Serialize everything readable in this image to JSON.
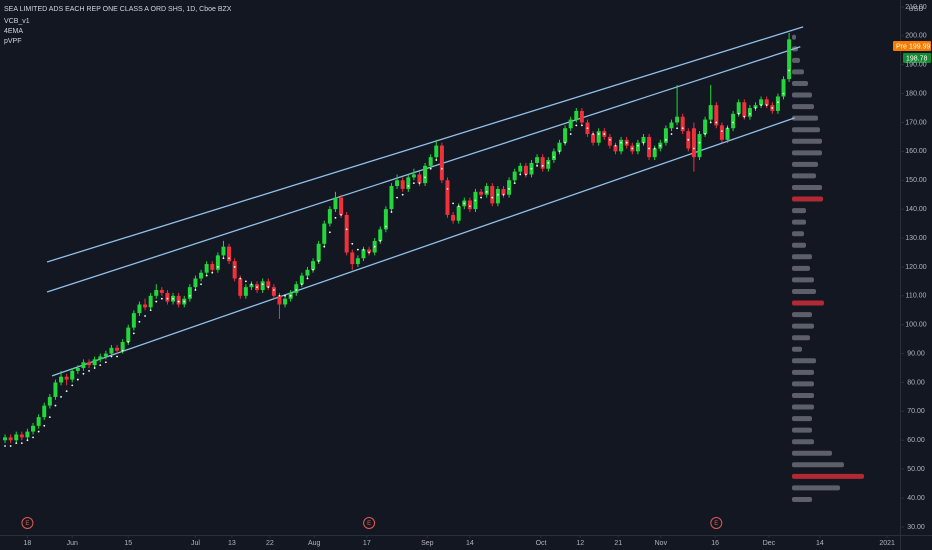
{
  "chart_data": {
    "type": "candlestick",
    "title": "SEA LIMITED ADS EACH REP ONE CLASS A ORD SHS, 1D, Cboe BZX",
    "indicators": [
      "VCB_v1",
      "4EMA",
      "pVPF"
    ],
    "currency": "USD",
    "up_color": "#22d63b",
    "down_color": "#f0313b",
    "candles": [
      [
        60,
        62,
        59,
        61
      ],
      [
        61,
        62,
        59,
        60
      ],
      [
        60,
        63,
        59,
        62
      ],
      [
        62,
        63,
        60,
        61
      ],
      [
        61,
        64,
        60,
        63
      ],
      [
        63,
        66,
        62,
        65
      ],
      [
        65,
        69,
        64,
        68
      ],
      [
        68,
        73,
        67,
        72
      ],
      [
        72,
        76,
        71,
        75
      ],
      [
        75,
        81,
        74,
        80
      ],
      [
        80,
        84,
        79,
        82
      ],
      [
        82,
        83,
        79,
        81
      ],
      [
        81,
        85,
        80,
        84
      ],
      [
        84,
        86,
        83,
        85
      ],
      [
        85,
        88,
        84,
        87
      ],
      [
        87,
        88,
        85,
        86
      ],
      [
        86,
        89,
        85,
        88
      ],
      [
        88,
        90,
        87,
        89
      ],
      [
        89,
        91,
        88,
        90
      ],
      [
        90,
        93,
        89,
        92
      ],
      [
        92,
        93,
        90,
        91
      ],
      [
        91,
        95,
        90,
        94
      ],
      [
        94,
        100,
        93,
        99
      ],
      [
        99,
        105,
        98,
        104
      ],
      [
        104,
        108,
        103,
        107
      ],
      [
        107,
        109,
        105,
        106
      ],
      [
        106,
        111,
        105,
        110
      ],
      [
        110,
        114,
        109,
        112
      ],
      [
        112,
        113,
        110,
        111
      ],
      [
        111,
        112,
        107,
        108
      ],
      [
        108,
        111,
        107,
        110
      ],
      [
        110,
        111,
        106,
        107
      ],
      [
        107,
        110,
        106,
        109
      ],
      [
        109,
        114,
        108,
        113
      ],
      [
        113,
        117,
        112,
        116
      ],
      [
        116,
        119,
        115,
        118
      ],
      [
        118,
        122,
        117,
        121
      ],
      [
        121,
        122,
        118,
        119
      ],
      [
        119,
        125,
        118,
        124
      ],
      [
        124,
        129,
        123,
        127
      ],
      [
        127,
        128,
        121,
        122
      ],
      [
        122,
        123,
        115,
        116
      ],
      [
        116,
        117,
        109,
        110
      ],
      [
        110,
        114,
        109,
        113
      ],
      [
        113,
        115,
        112,
        114
      ],
      [
        114,
        115,
        111,
        112
      ],
      [
        112,
        116,
        111,
        115
      ],
      [
        115,
        116,
        112,
        113
      ],
      [
        113,
        114,
        109,
        110
      ],
      [
        110,
        111,
        102,
        107
      ],
      [
        107,
        110,
        106,
        109
      ],
      [
        109,
        112,
        108,
        111
      ],
      [
        111,
        115,
        110,
        114
      ],
      [
        114,
        118,
        113,
        117
      ],
      [
        117,
        120,
        116,
        119
      ],
      [
        119,
        123,
        118,
        122
      ],
      [
        122,
        129,
        121,
        128
      ],
      [
        128,
        136,
        127,
        135
      ],
      [
        135,
        141,
        134,
        140
      ],
      [
        140,
        146,
        139,
        144
      ],
      [
        144,
        145,
        137,
        138
      ],
      [
        138,
        139,
        124,
        125
      ],
      [
        125,
        126,
        119,
        121
      ],
      [
        121,
        124,
        120,
        123
      ],
      [
        123,
        127,
        122,
        126
      ],
      [
        126,
        127,
        124,
        125
      ],
      [
        125,
        130,
        124,
        129
      ],
      [
        129,
        134,
        128,
        133
      ],
      [
        133,
        141,
        132,
        140
      ],
      [
        140,
        149,
        139,
        148
      ],
      [
        148,
        152,
        147,
        150
      ],
      [
        150,
        151,
        146,
        147
      ],
      [
        147,
        152,
        146,
        151
      ],
      [
        151,
        154,
        150,
        152
      ],
      [
        152,
        153,
        148,
        149
      ],
      [
        149,
        156,
        148,
        155
      ],
      [
        155,
        159,
        154,
        158
      ],
      [
        158,
        164,
        157,
        162
      ],
      [
        162,
        163,
        149,
        150
      ],
      [
        150,
        151,
        137,
        138
      ],
      [
        138,
        139,
        135,
        136
      ],
      [
        136,
        142,
        135,
        141
      ],
      [
        141,
        144,
        140,
        143
      ],
      [
        143,
        144,
        139,
        140
      ],
      [
        140,
        147,
        139,
        146
      ],
      [
        146,
        147,
        144,
        145
      ],
      [
        145,
        149,
        144,
        148
      ],
      [
        148,
        149,
        141,
        142
      ],
      [
        142,
        148,
        141,
        147
      ],
      [
        147,
        148,
        144,
        145
      ],
      [
        145,
        151,
        144,
        150
      ],
      [
        150,
        154,
        149,
        153
      ],
      [
        153,
        156,
        152,
        155
      ],
      [
        155,
        156,
        151,
        152
      ],
      [
        152,
        157,
        151,
        156
      ],
      [
        156,
        159,
        155,
        158
      ],
      [
        158,
        159,
        153,
        154
      ],
      [
        154,
        158,
        153,
        157
      ],
      [
        157,
        161,
        156,
        160
      ],
      [
        160,
        164,
        159,
        163
      ],
      [
        163,
        169,
        162,
        168
      ],
      [
        168,
        172,
        167,
        171
      ],
      [
        171,
        175,
        170,
        174
      ],
      [
        174,
        175,
        169,
        170
      ],
      [
        170,
        171,
        165,
        166
      ],
      [
        166,
        167,
        162,
        163
      ],
      [
        163,
        168,
        162,
        167
      ],
      [
        167,
        168,
        164,
        165
      ],
      [
        165,
        166,
        161,
        162
      ],
      [
        162,
        163,
        159,
        160
      ],
      [
        160,
        165,
        159,
        164
      ],
      [
        164,
        165,
        161,
        162
      ],
      [
        162,
        163,
        159,
        160
      ],
      [
        160,
        164,
        159,
        163
      ],
      [
        163,
        166,
        162,
        165
      ],
      [
        165,
        166,
        157,
        158
      ],
      [
        158,
        162,
        157,
        161
      ],
      [
        161,
        164,
        160,
        163
      ],
      [
        163,
        169,
        162,
        168
      ],
      [
        168,
        171,
        167,
        170
      ],
      [
        170,
        183,
        169,
        172
      ],
      [
        172,
        173,
        166,
        167
      ],
      [
        167,
        168,
        160,
        161
      ],
      [
        168,
        170,
        153,
        158
      ],
      [
        158,
        167,
        157,
        166
      ],
      [
        166,
        172,
        165,
        171
      ],
      [
        171,
        183,
        170,
        176
      ],
      [
        176,
        177,
        168,
        169
      ],
      [
        169,
        170,
        163,
        164
      ],
      [
        164,
        169,
        163,
        168
      ],
      [
        168,
        174,
        167,
        173
      ],
      [
        173,
        178,
        172,
        177
      ],
      [
        177,
        178,
        171,
        172
      ],
      [
        172,
        176,
        171,
        175
      ],
      [
        175,
        177,
        174,
        176
      ],
      [
        176,
        179,
        175,
        178
      ],
      [
        178,
        179,
        175,
        176
      ],
      [
        176,
        177,
        173,
        174
      ],
      [
        174,
        180,
        173,
        179
      ],
      [
        179,
        186,
        178,
        185
      ],
      [
        185,
        201,
        184,
        198.78
      ]
    ],
    "ema": [
      58,
      58,
      59,
      59,
      60,
      61,
      63,
      65,
      68,
      72,
      75,
      77,
      79,
      81,
      83,
      84,
      85,
      86,
      87,
      89,
      89,
      91,
      94,
      97,
      101,
      103,
      105,
      108,
      109,
      109,
      109,
      108,
      108,
      110,
      112,
      114,
      117,
      118,
      120,
      123,
      123,
      120,
      116,
      115,
      114,
      113,
      114,
      113,
      112,
      110,
      110,
      110,
      112,
      114,
      116,
      119,
      122,
      127,
      132,
      137,
      138,
      133,
      128,
      126,
      126,
      125,
      127,
      129,
      134,
      139,
      144,
      145,
      148,
      149,
      149,
      151,
      154,
      157,
      154,
      147,
      142,
      141,
      142,
      141,
      143,
      144,
      146,
      144,
      145,
      145,
      147,
      149,
      152,
      152,
      154,
      155,
      155,
      156,
      158,
      160,
      163,
      166,
      169,
      169,
      168,
      166,
      166,
      166,
      164,
      162,
      163,
      163,
      161,
      162,
      163,
      161,
      161,
      162,
      164,
      166,
      168,
      168,
      164,
      161,
      163,
      166,
      170,
      170,
      167,
      168,
      170,
      173,
      172,
      173,
      175,
      176,
      176,
      175,
      177,
      180,
      188
    ],
    "ema_color": "#ffffff",
    "xlim": [
      -0.9,
      159.8
    ],
    "xticks": [
      {
        "value": 4,
        "label": "18"
      },
      {
        "value": 12,
        "label": "Jun"
      },
      {
        "value": 22,
        "label": "15"
      },
      {
        "value": 34,
        "label": "Jul"
      },
      {
        "value": 40.5,
        "label": "13"
      },
      {
        "value": 47.3,
        "label": "22"
      },
      {
        "value": 55.2,
        "label": "Aug"
      },
      {
        "value": 64.6,
        "label": "17"
      },
      {
        "value": 75.4,
        "label": "Sep"
      },
      {
        "value": 83,
        "label": "14"
      },
      {
        "value": 95.7,
        "label": "Oct"
      },
      {
        "value": 102.7,
        "label": "12"
      },
      {
        "value": 109.5,
        "label": "21"
      },
      {
        "value": 117.1,
        "label": "Nov"
      },
      {
        "value": 126.8,
        "label": "16"
      },
      {
        "value": 136.4,
        "label": "Dec"
      },
      {
        "value": 145.5,
        "label": "14"
      },
      {
        "value": 157.5,
        "label": "2021"
      }
    ],
    "ylim": [
      27.2,
      212.4
    ],
    "yticks": [
      {
        "value": 30,
        "label": "30.00"
      },
      {
        "value": 40,
        "label": "40.00"
      },
      {
        "value": 50,
        "label": "50.00"
      },
      {
        "value": 60,
        "label": "60.00"
      },
      {
        "value": 70,
        "label": "70.00"
      },
      {
        "value": 80,
        "label": "80.00"
      },
      {
        "value": 90,
        "label": "90.00"
      },
      {
        "value": 100,
        "label": "100.00"
      },
      {
        "value": 110,
        "label": "110.00"
      },
      {
        "value": 120,
        "label": "120.00"
      },
      {
        "value": 130,
        "label": "130.00"
      },
      {
        "value": 140,
        "label": "140.00"
      },
      {
        "value": 150,
        "label": "150.00"
      },
      {
        "value": 160,
        "label": "160.00"
      },
      {
        "value": 170,
        "label": "170.00"
      },
      {
        "value": 180,
        "label": "180.00"
      },
      {
        "value": 190,
        "label": "190.00"
      },
      {
        "value": 200,
        "label": "200.00"
      },
      {
        "value": 210,
        "label": "210.00"
      }
    ],
    "trendlines": {
      "color": "#90bfe8",
      "lines": [
        {
          "x": [
            7.5,
            142.5
          ],
          "y": [
            121.7,
            203.1
          ]
        },
        {
          "x": [
            7.5,
            142
          ],
          "y": [
            111.3,
            196.2
          ]
        },
        {
          "x": [
            8.4,
            141
          ],
          "y": [
            82.3,
            171.6
          ]
        }
      ]
    },
    "volume_profile": {
      "vlim": [
        0,
        100
      ],
      "prices": [
        199.5,
        195.5,
        191.5,
        187.5,
        183.5,
        179.5,
        175.5,
        171.5,
        167.5,
        163.5,
        159.5,
        155.5,
        151.5,
        147.5,
        143.5,
        139.5,
        135.5,
        131.5,
        127.5,
        123.5,
        119.5,
        115.5,
        111.5,
        107.5,
        103.5,
        99.5,
        95.5,
        91.5,
        87.5,
        83.5,
        79.5,
        75.5,
        71.5,
        67.5,
        63.5,
        59.5,
        55.5,
        51.5,
        47.5,
        43.5,
        39.5
      ],
      "volumes": [
        4,
        6,
        8,
        12,
        16,
        20,
        22,
        26,
        28,
        30,
        30,
        26,
        24,
        30,
        31,
        14,
        14,
        12,
        14,
        20,
        18,
        22,
        24,
        32,
        20,
        22,
        18,
        10,
        24,
        22,
        22,
        22,
        22,
        20,
        20,
        22,
        40,
        52,
        72,
        48,
        20
      ],
      "colors": [
        "#5d606b",
        "#5d606b",
        "#5d606b",
        "#5d606b",
        "#5d606b",
        "#5d606b",
        "#5d606b",
        "#5d606b",
        "#5d606b",
        "#5d606b",
        "#5d606b",
        "#5d606b",
        "#5d606b",
        "#5d606b",
        "#b22833",
        "#5d606b",
        "#5d606b",
        "#5d606b",
        "#5d606b",
        "#5d606b",
        "#5d606b",
        "#5d606b",
        "#5d606b",
        "#b22833",
        "#5d606b",
        "#5d606b",
        "#5d606b",
        "#5d606b",
        "#5d606b",
        "#5d606b",
        "#5d606b",
        "#5d606b",
        "#5d606b",
        "#5d606b",
        "#5d606b",
        "#5d606b",
        "#5d606b",
        "#5d606b",
        "#b22833",
        "#5d606b",
        "#5d606b"
      ]
    },
    "earnings": {
      "label": "E",
      "x": [
        4,
        65,
        127
      ]
    },
    "pre_market": {
      "label": "Pre",
      "value": 199.99
    },
    "last_price": 198.78
  }
}
